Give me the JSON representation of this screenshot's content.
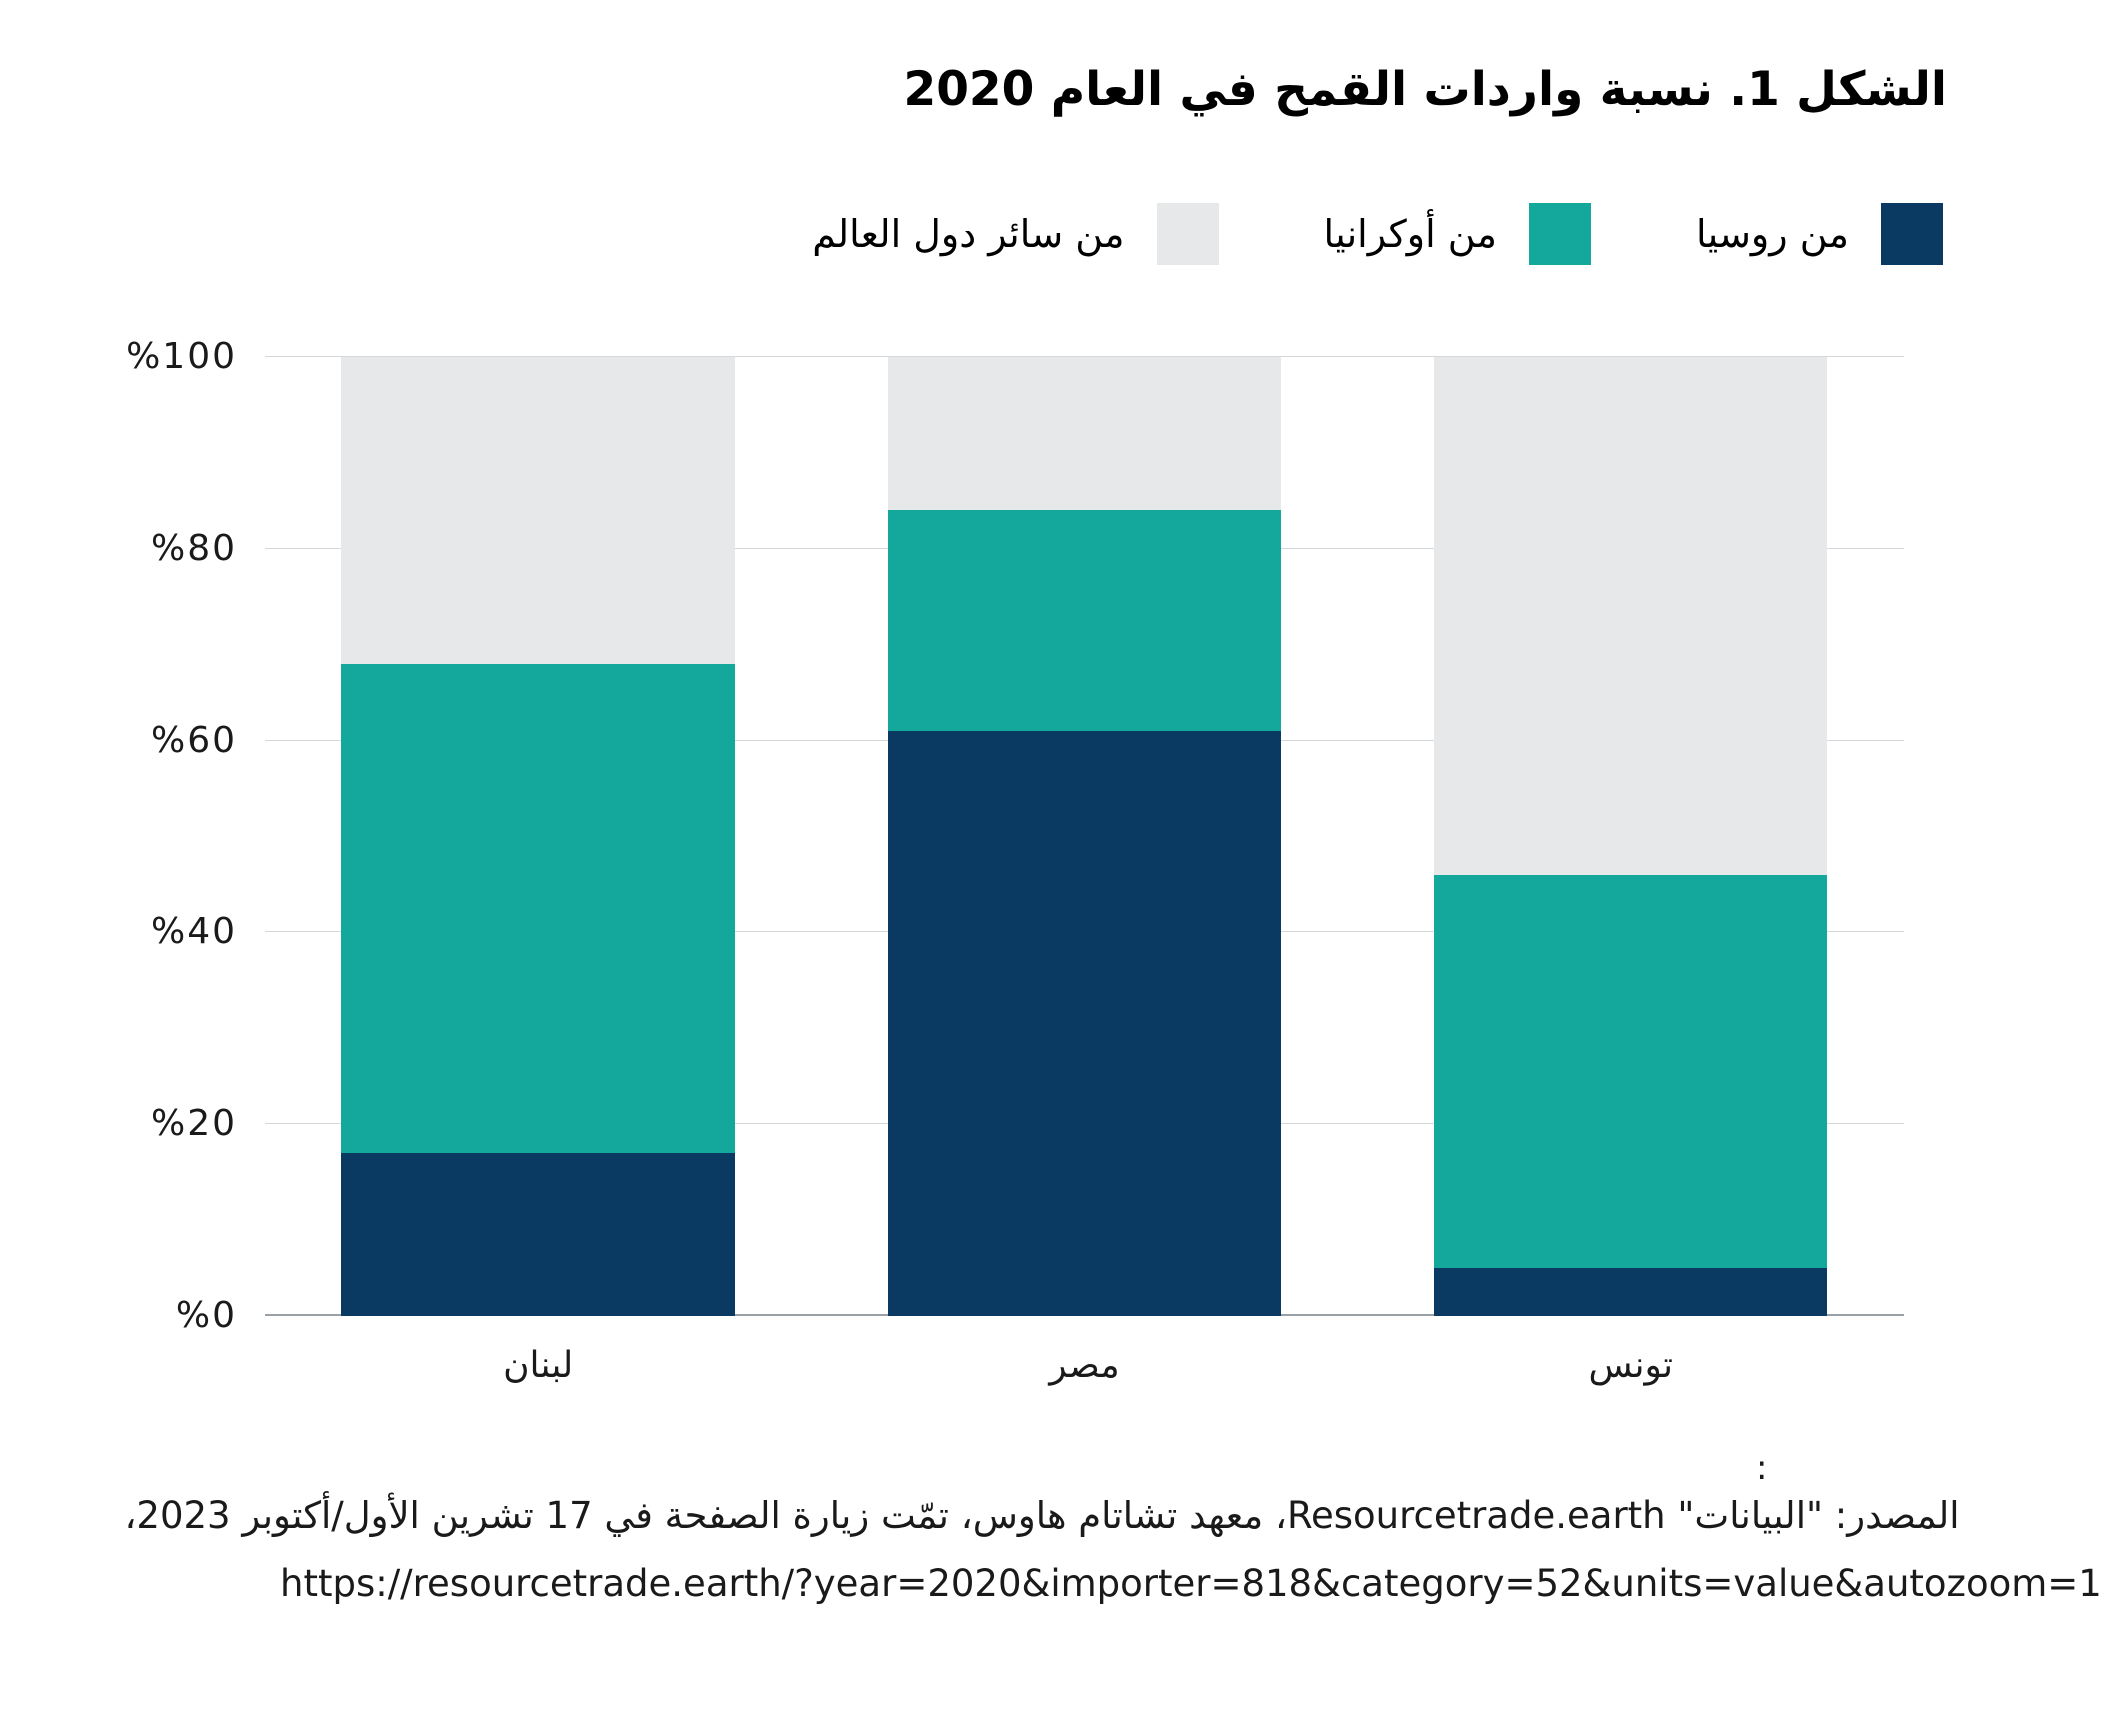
{
  "title": "الشكل 1. نسبة واردات القمح في العام 2020",
  "chart_data": {
    "type": "bar",
    "stacked": true,
    "title": "الشكل 1. نسبة واردات القمح في العام 2020",
    "categories": [
      "لبنان",
      "مصر",
      "تونس"
    ],
    "series": [
      {
        "name": "من روسيا",
        "color": "#0a3a61",
        "values": [
          17,
          61,
          5
        ]
      },
      {
        "name": "من أوكرانيا",
        "color": "#14a79c",
        "values": [
          51,
          23,
          41
        ]
      },
      {
        "name": "من سائر دول العالم",
        "color": "#e6e8ea",
        "values": [
          32,
          16,
          54
        ]
      }
    ],
    "xlabel": "",
    "ylabel": "",
    "ylim": [
      0,
      100
    ],
    "ytick_step": 20,
    "ytick_labels": [
      "%0",
      "%20",
      "%40",
      "%60",
      "%80",
      "%100"
    ],
    "grid": true,
    "legend_position": "top-right",
    "bar_order_note": "bars stacked bottom-to-top: Russia, Ukraine, rest of world"
  },
  "footer": {
    "colon_mark": ":",
    "source_line": "المصدر: \"البيانات\" Resourcetrade.earth، معهد تشاتام هاوس، تمّت زيارة الصفحة في 17 تشرين الأول/أكتوبر 2023،",
    "source_url": "https://resourcetrade.earth/?year=2020&importer=818&category=52&units=value&autozoom=1"
  },
  "colors": {
    "russia": "#0a3a61",
    "ukraine": "#14a79c",
    "rest_of_world": "#e6e8ea",
    "gridline": "#d5d8da",
    "axis_baseline": "#9aa1a6",
    "text": "#1a1a1a"
  }
}
